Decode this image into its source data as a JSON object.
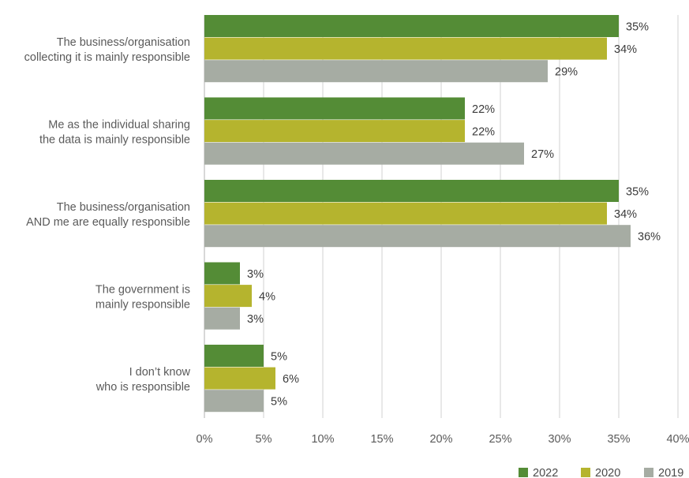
{
  "chart_data": {
    "type": "bar",
    "orientation": "horizontal",
    "categories": [
      [
        "The business/organisation",
        "collecting it is mainly responsible"
      ],
      [
        "Me as the individual sharing",
        "the data is mainly responsible"
      ],
      [
        "The business/organisation",
        "AND me are equally responsible"
      ],
      [
        "The government is",
        "mainly responsible"
      ],
      [
        "I don’t know",
        "who is responsible"
      ]
    ],
    "series": [
      {
        "name": "2022",
        "color": "#548c36",
        "values": [
          35,
          22,
          35,
          3,
          5
        ]
      },
      {
        "name": "2020",
        "color": "#b5b42e",
        "values": [
          34,
          22,
          34,
          4,
          6
        ]
      },
      {
        "name": "2019",
        "color": "#a6aca3",
        "values": [
          29,
          27,
          36,
          3,
          5
        ]
      }
    ],
    "xlim": [
      0,
      40
    ],
    "xticks": [
      0,
      5,
      10,
      15,
      20,
      25,
      30,
      35,
      40
    ],
    "tick_suffix": "%",
    "value_suffix": "%",
    "grid": true,
    "legend_position": "bottom-right",
    "title": "",
    "xlabel": "",
    "ylabel": ""
  }
}
